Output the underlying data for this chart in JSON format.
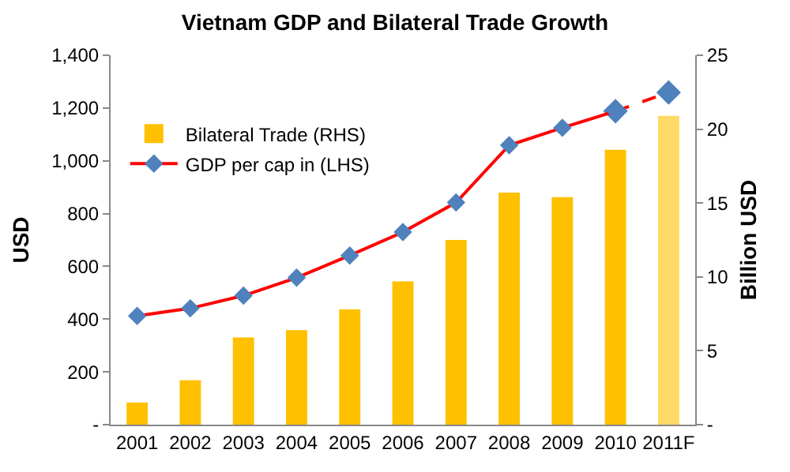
{
  "chart_data": {
    "type": "bar",
    "title": "Vietnam GDP and Bilateral Trade Growth",
    "ylabel": "USD",
    "y2label": "Billion USD",
    "categories": [
      "2001",
      "2002",
      "2003",
      "2004",
      "2005",
      "2006",
      "2007",
      "2008",
      "2009",
      "2010",
      "2011F"
    ],
    "series": [
      {
        "name": "Bilateral Trade (RHS)",
        "axis": "y2",
        "color": "#ffc000",
        "colors": [
          "#ffc000",
          "#ffc000",
          "#ffc000",
          "#ffc000",
          "#ffc000",
          "#ffc000",
          "#ffc000",
          "#ffc000",
          "#ffc000",
          "#ffc000",
          "#ffd966"
        ],
        "values": [
          1.5,
          3.0,
          5.9,
          6.4,
          7.8,
          9.7,
          12.5,
          15.7,
          15.4,
          18.6,
          20.9
        ]
      },
      {
        "type": "line",
        "axis": "y",
        "color": "#ff0000",
        "marker": "diamond",
        "line_style": "dashed",
        "values": [
          null,
          null,
          null,
          null,
          null,
          null,
          null,
          null,
          null,
          1188,
          1259
        ]
      },
      {
        "name": "GDP per cap in (LHS)",
        "type": "line",
        "axis": "y",
        "color": "#ff0000",
        "marker": "diamond",
        "line_style": "solid",
        "values": [
          412,
          441,
          489,
          557,
          641,
          730,
          842,
          1059,
          1125,
          1188,
          null
        ]
      }
    ],
    "ylim": [
      0,
      1400
    ],
    "yticks": [
      {
        "value": 0,
        "label": "-"
      },
      {
        "value": 200,
        "label": "200"
      },
      {
        "value": 400,
        "label": "400"
      },
      {
        "value": 600,
        "label": "600"
      },
      {
        "value": 800,
        "label": "800"
      },
      {
        "value": 1000,
        "label": "1,000"
      },
      {
        "value": 1200,
        "label": "1,200"
      },
      {
        "value": 1400,
        "label": "1,400"
      }
    ],
    "y2lim": [
      0,
      25
    ],
    "y2ticks": [
      {
        "value": 0,
        "label": "-"
      },
      5,
      10,
      15,
      20,
      25
    ],
    "legend": "top left"
  }
}
